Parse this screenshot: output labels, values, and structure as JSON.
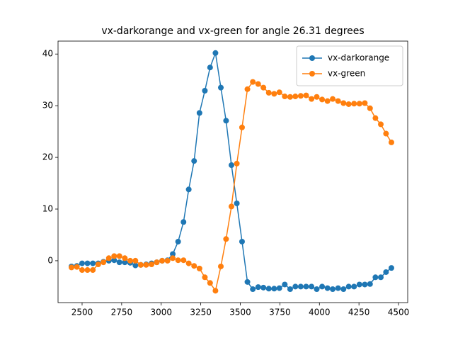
{
  "chart_data": {
    "type": "line",
    "title": "vx-darkorange and vx-green for angle 26.31 degrees",
    "x": [
      2433,
      2467,
      2500,
      2534,
      2568,
      2602,
      2635,
      2669,
      2703,
      2736,
      2770,
      2804,
      2837,
      2871,
      2905,
      2939,
      2972,
      3006,
      3040,
      3073,
      3107,
      3141,
      3174,
      3208,
      3242,
      3276,
      3309,
      3343,
      3377,
      3410,
      3444,
      3478,
      3511,
      3545,
      3579,
      3613,
      3646,
      3680,
      3714,
      3747,
      3781,
      3815,
      3848,
      3882,
      3916,
      3950,
      3983,
      4017,
      4051,
      4084,
      4118,
      4152,
      4185,
      4219,
      4253,
      4287,
      4320,
      4354,
      4388,
      4421,
      4455
    ],
    "series": [
      {
        "name": "vx-darkorange",
        "color": "#1f77b4",
        "values": [
          -1.1,
          -1.0,
          -0.5,
          -0.5,
          -0.5,
          -0.5,
          -0.2,
          0.0,
          0.1,
          -0.3,
          -0.3,
          -0.4,
          -0.9,
          -0.8,
          -0.7,
          -0.5,
          -0.3,
          0.0,
          0.1,
          1.3,
          3.7,
          7.5,
          13.8,
          19.3,
          28.6,
          32.9,
          37.4,
          40.2,
          33.5,
          27.1,
          18.5,
          11.1,
          3.7,
          -4.1,
          -5.5,
          -5.1,
          -5.2,
          -5.4,
          -5.4,
          -5.3,
          -4.6,
          -5.5,
          -5.0,
          -5.0,
          -5.0,
          -5.0,
          -5.5,
          -5.0,
          -5.3,
          -5.5,
          -5.3,
          -5.5,
          -5.0,
          -5.0,
          -4.6,
          -4.6,
          -4.5,
          -3.2,
          -3.2,
          -2.2,
          -1.4
        ]
      },
      {
        "name": "vx-green",
        "color": "#ff7f0e",
        "values": [
          -1.3,
          -1.2,
          -1.8,
          -1.8,
          -1.8,
          -0.7,
          -0.3,
          0.5,
          0.9,
          0.9,
          0.5,
          0.0,
          0.0,
          -0.8,
          -0.8,
          -0.7,
          -0.3,
          0.0,
          0.0,
          0.5,
          0.1,
          0.1,
          -0.5,
          -1.0,
          -1.5,
          -3.2,
          -4.3,
          -5.8,
          -1.1,
          4.2,
          10.5,
          18.8,
          25.8,
          33.2,
          34.6,
          34.2,
          33.5,
          32.5,
          32.3,
          32.6,
          31.8,
          31.7,
          31.8,
          31.9,
          32.0,
          31.3,
          31.7,
          31.2,
          30.9,
          31.3,
          30.9,
          30.5,
          30.3,
          30.4,
          30.4,
          30.5,
          29.5,
          27.6,
          26.4,
          24.6,
          22.9
        ]
      }
    ],
    "xlim": [
      2348,
      4558
    ],
    "ylim": [
      -8.1,
      42.5
    ],
    "xticks": [
      2500,
      2750,
      3000,
      3250,
      3500,
      3750,
      4000,
      4250,
      4500
    ],
    "yticks": [
      0,
      10,
      20,
      30,
      40
    ],
    "legend": "upper right",
    "markers": true
  }
}
